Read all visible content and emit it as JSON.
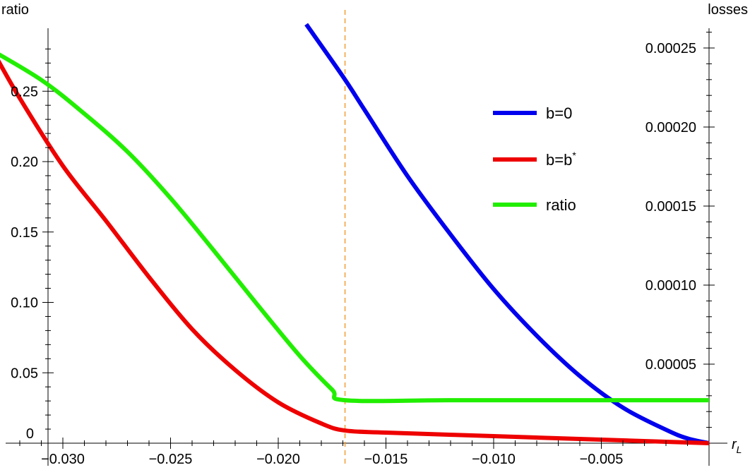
{
  "chart_data": {
    "type": "line",
    "x_label": "r_L",
    "left_axis": {
      "label": "ratio",
      "range": [
        0,
        0.29
      ],
      "ticks": [
        0.05,
        0.1,
        0.15,
        0.2,
        0.25
      ],
      "tick_labels": [
        "0.05",
        "0.10",
        "0.15",
        "0.20",
        "0.25"
      ],
      "origin_label": "0"
    },
    "right_axis": {
      "label": "losses",
      "range": [
        0,
        0.00026
      ],
      "ticks": [
        5e-05,
        0.0001,
        0.00015,
        0.0002,
        0.00025
      ],
      "tick_labels": [
        "0.00005",
        "0.00010",
        "0.00015",
        "0.00020",
        "0.00025"
      ]
    },
    "x_axis": {
      "range": [
        -0.0335,
        0
      ],
      "ticks": [
        -0.03,
        -0.025,
        -0.02,
        -0.015,
        -0.01,
        -0.005
      ],
      "tick_labels": [
        "−0.030",
        "−0.025",
        "−0.020",
        "−0.015",
        "−0.010",
        "−0.005"
      ]
    },
    "threshold_x": -0.0169,
    "series": [
      {
        "name": "b=0",
        "axis": "right",
        "color": "#0000ee",
        "x": [
          -0.0187,
          -0.017,
          -0.016,
          -0.014,
          -0.012,
          -0.01,
          -0.008,
          -0.006,
          -0.004,
          -0.002,
          -0.001,
          0
        ],
        "y": [
          0.000265,
          0.000232,
          0.000211,
          0.000169,
          0.000132,
          9.75e-05,
          6.8e-05,
          4.25e-05,
          2.25e-05,
          8.5e-06,
          3e-06,
          0
        ]
      },
      {
        "name": "b=b*",
        "axis": "left",
        "color": "#ee0000",
        "x": [
          -0.0333,
          -0.032,
          -0.03,
          -0.028,
          -0.026,
          -0.024,
          -0.022,
          -0.02,
          -0.018,
          -0.0169,
          -0.015,
          -0.01,
          -0.005,
          -0.002,
          0
        ],
        "y": [
          0.28,
          0.245,
          0.197,
          0.158,
          0.118,
          0.081,
          0.052,
          0.029,
          0.014,
          0.009,
          0.0075,
          0.005,
          0.0025,
          0.001,
          0
        ]
      },
      {
        "name": "ratio",
        "axis": "left",
        "color": "#22ee00",
        "x": [
          -0.0334,
          -0.031,
          -0.029,
          -0.027,
          -0.025,
          -0.023,
          -0.021,
          -0.019,
          -0.0175,
          -0.0169,
          -0.012,
          -0.006,
          0
        ],
        "y": [
          0.28,
          0.258,
          0.234,
          0.207,
          0.174,
          0.137,
          0.099,
          0.062,
          0.038,
          0.0305,
          0.0305,
          0.0305,
          0.0305
        ]
      }
    ],
    "legend": {
      "placement": "top-right",
      "entries": [
        {
          "label": "b=0",
          "color": "#0000ee"
        },
        {
          "label": "b=b*",
          "color": "#ee0000"
        },
        {
          "label": "ratio",
          "color": "#22ee00"
        }
      ]
    },
    "grid": false
  }
}
